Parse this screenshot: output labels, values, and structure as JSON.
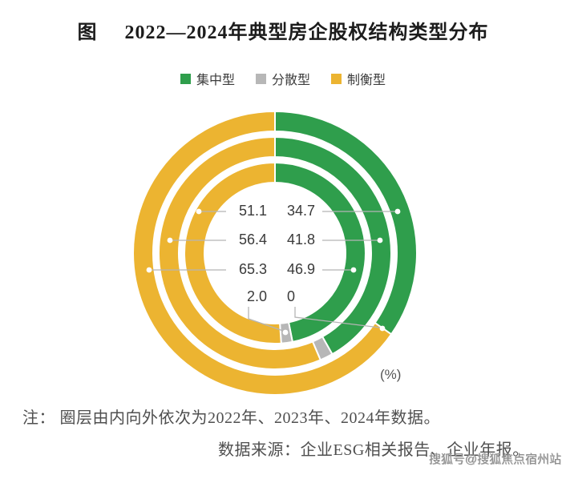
{
  "title": {
    "prefix": "图",
    "text": "2022—2024年典型房企股权结构类型分布"
  },
  "chart_data": {
    "type": "donut",
    "title": "2022—2024年典型房企股权结构类型分布",
    "unit": "%",
    "categories": [
      "集中型",
      "分散型",
      "制衡型"
    ],
    "colors": [
      "#2f9e4c",
      "#b7b7b7",
      "#ecb431"
    ],
    "direction": "clockwise",
    "start_angle_deg": 0,
    "legend_position": "top",
    "rings": [
      {
        "year": "2022",
        "position": "inner",
        "values": [
          46.9,
          2.0,
          51.1
        ]
      },
      {
        "year": "2023",
        "position": "middle",
        "values": [
          41.8,
          1.8,
          56.4
        ]
      },
      {
        "year": "2024",
        "position": "outer",
        "values": [
          34.7,
          0,
          65.3
        ]
      }
    ],
    "value_labels": {
      "left": [
        "51.1",
        "56.4",
        "65.3",
        "2.0"
      ],
      "right": [
        "34.7",
        "41.8",
        "46.9",
        "0"
      ]
    }
  },
  "unit_label": "(%)",
  "note": "注： 圈层由内向外依次为2022年、2023年、2024年数据。",
  "source": "数据来源：企业ESG相关报告、企业年报。",
  "watermark": "搜狐号@搜狐焦点宿州站"
}
